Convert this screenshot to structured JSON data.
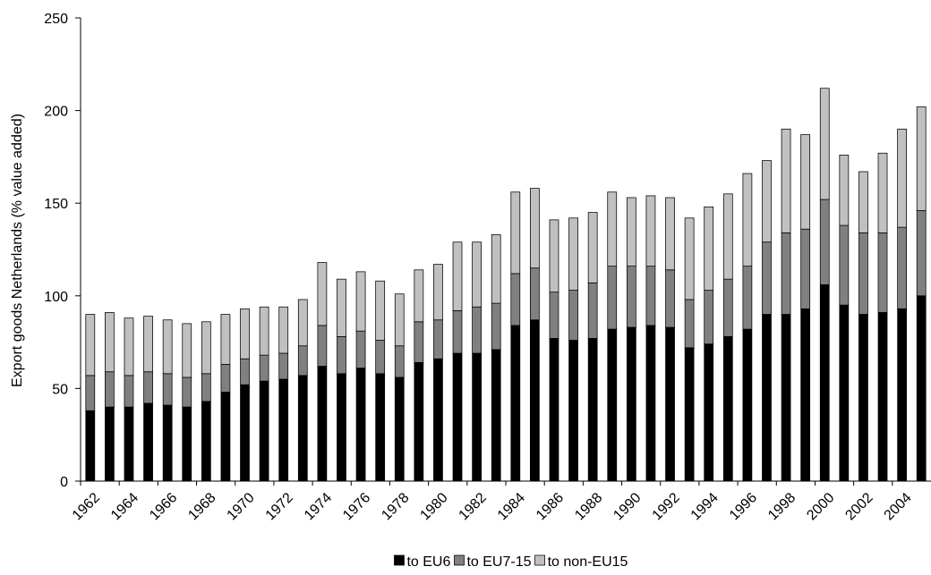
{
  "chart_data": {
    "type": "bar",
    "stacked": true,
    "ylabel": "Export goods Netherlands (% value added)",
    "xlabel": "",
    "ylim": [
      0,
      250
    ],
    "yticks": [
      0,
      50,
      100,
      150,
      200,
      250
    ],
    "grid": false,
    "legend_position": "bottom",
    "x": [
      1962,
      1963,
      1964,
      1965,
      1966,
      1967,
      1968,
      1969,
      1970,
      1971,
      1972,
      1973,
      1974,
      1975,
      1976,
      1977,
      1978,
      1979,
      1980,
      1981,
      1982,
      1983,
      1984,
      1985,
      1986,
      1987,
      1988,
      1989,
      1990,
      1991,
      1992,
      1993,
      1994,
      1995,
      1996,
      1997,
      1998,
      1999,
      2000,
      2001,
      2002,
      2003,
      2004,
      2005
    ],
    "x_tick_labels": [
      "1962",
      "1964",
      "1966",
      "1968",
      "1970",
      "1972",
      "1974",
      "1976",
      "1978",
      "1980",
      "1982",
      "1984",
      "1986",
      "1988",
      "1990",
      "1992",
      "1994",
      "1996",
      "1998",
      "2000",
      "2002",
      "2004"
    ],
    "series": [
      {
        "name": "to EU6",
        "color": "#000000",
        "values": [
          38,
          40,
          40,
          42,
          41,
          40,
          43,
          48,
          52,
          54,
          55,
          57,
          62,
          58,
          61,
          58,
          56,
          64,
          66,
          69,
          69,
          71,
          84,
          87,
          77,
          76,
          77,
          82,
          83,
          84,
          83,
          72,
          74,
          78,
          82,
          90,
          90,
          93,
          106,
          95,
          90,
          91,
          93,
          100
        ]
      },
      {
        "name": "to EU7-15",
        "color": "#808080",
        "values": [
          19,
          19,
          17,
          17,
          17,
          16,
          15,
          15,
          14,
          14,
          14,
          16,
          22,
          20,
          20,
          18,
          17,
          22,
          21,
          23,
          25,
          25,
          28,
          28,
          25,
          27,
          30,
          34,
          33,
          32,
          31,
          26,
          29,
          31,
          34,
          39,
          44,
          43,
          46,
          43,
          44,
          43,
          44,
          46
        ]
      },
      {
        "name": "to non-EU15",
        "color": "#c0c0c0",
        "values": [
          33,
          32,
          31,
          30,
          29,
          29,
          28,
          27,
          27,
          26,
          25,
          25,
          34,
          31,
          32,
          32,
          28,
          28,
          30,
          37,
          35,
          37,
          44,
          43,
          39,
          39,
          38,
          40,
          37,
          38,
          39,
          44,
          45,
          46,
          50,
          44,
          56,
          51,
          60,
          38,
          33,
          43,
          53,
          56
        ]
      }
    ]
  }
}
